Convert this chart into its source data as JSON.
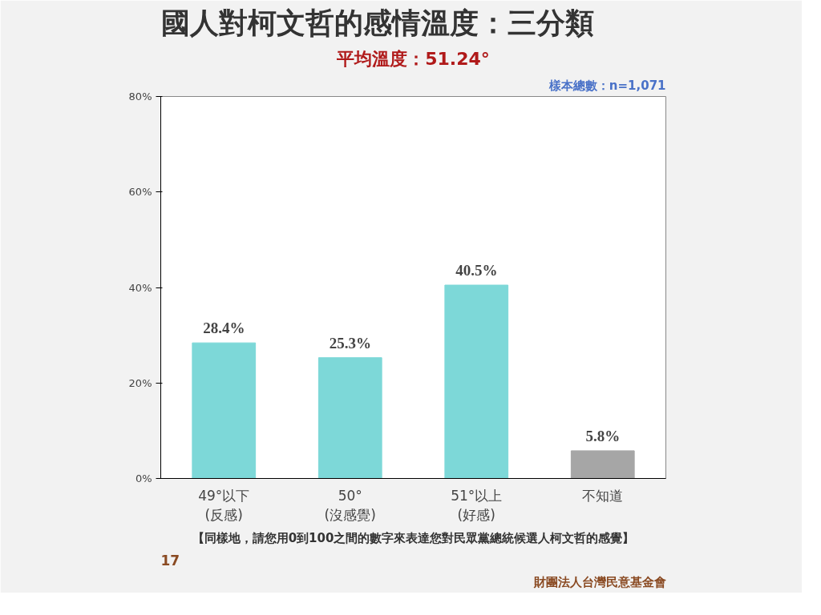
{
  "chart_data": {
    "type": "bar",
    "title": "國人對柯文哲的感情溫度：三分類",
    "categories": [
      "49°以下\n(反感)",
      "50°\n(沒感覺)",
      "51°以上\n(好感)",
      "不知道"
    ],
    "values": [
      28.4,
      25.3,
      40.5,
      5.8
    ],
    "colors": [
      "#7dd8d8",
      "#7dd8d8",
      "#7dd8d8",
      "#a6a6a6"
    ],
    "value_labels": [
      "28.4%",
      "25.3%",
      "40.5%",
      "5.8%"
    ],
    "ylim": [
      0,
      80
    ],
    "yticks": [
      {
        "value": 0,
        "label": "0%"
      },
      {
        "value": 20,
        "label": "20%"
      },
      {
        "value": 40,
        "label": "40%"
      },
      {
        "value": 60,
        "label": "60%"
      },
      {
        "value": 80,
        "label": "80%"
      }
    ],
    "grid": false,
    "annotations": [
      "平均溫度：51.24°",
      "樣本總數：n=1,071",
      "【同樣地，請您用0到100之間的數字來表達您對民眾黨總統候選人柯文哲的感覺】",
      "17",
      "財團法人台灣民意基金會"
    ]
  }
}
